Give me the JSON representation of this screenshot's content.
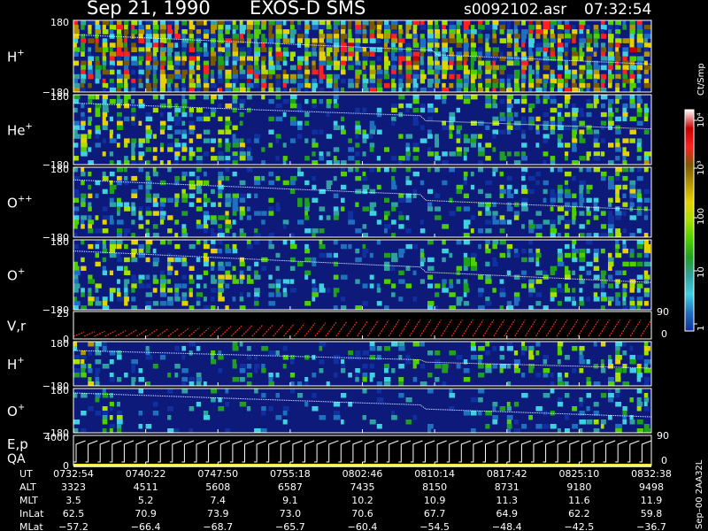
{
  "header": {
    "date": "Sep 21, 1990",
    "instrument": "EXOS-D SMS",
    "file": "s0092102.asr",
    "time": "07:32:54"
  },
  "colors": {
    "background": "#000000",
    "plot_fill": "#0d1a7a",
    "trace": "#ffffff",
    "vr_series": "#e03020",
    "qa_bar": "#f0e020"
  },
  "panels": [
    {
      "id": "hplus-1",
      "label": "H",
      "sup": "+",
      "ymax": "180",
      "ymin": "−180"
    },
    {
      "id": "heplus",
      "label": "He",
      "sup": "+",
      "ymax": "180",
      "ymin": "−180"
    },
    {
      "id": "oplusplus",
      "label": "O",
      "sup": "++",
      "ymax": "180",
      "ymin": "−180"
    },
    {
      "id": "oplus-1",
      "label": "O",
      "sup": "+",
      "ymax": "180",
      "ymin": "−180"
    },
    {
      "id": "vr",
      "label": "V,r",
      "sup": "",
      "ymax": "25",
      "ymin": "0",
      "right_top": "90",
      "right_bottom": "0"
    },
    {
      "id": "hplus-2",
      "label": "H",
      "sup": "+",
      "ymax": "180",
      "ymin": "−180"
    },
    {
      "id": "oplus-2",
      "label": "O",
      "sup": "+",
      "ymax": "180",
      "ymin": "−180"
    },
    {
      "id": "ep",
      "label": "E,p",
      "label2": "QA",
      "ymax": "4000",
      "ymin": "0",
      "right_top": "90",
      "right_bottom": "0"
    }
  ],
  "colorbar": {
    "units": "Ct/Smp",
    "tick_labels": [
      "10⁴",
      "10³",
      "100",
      "10",
      "1"
    ],
    "colors": [
      "#ffffff",
      "#c80000",
      "#ff2020",
      "#7a5a00",
      "#b49600",
      "#e6d200",
      "#a8e000",
      "#50d000",
      "#20a020",
      "#30a0a0",
      "#40d0e0",
      "#2070c0",
      "#1030a0"
    ]
  },
  "chart_data": {
    "type": "heatmap",
    "title": "Sep 21, 1990   EXOS-D SMS",
    "subtitle": "s0092102.asr  07:32:54",
    "x_axis": {
      "rows": [
        {
          "label": "UT",
          "values": [
            "0732:54",
            "0740:22",
            "0747:50",
            "0755:18",
            "0802:46",
            "0810:14",
            "0817:42",
            "0825:10",
            "0832:38"
          ]
        },
        {
          "label": "ALT",
          "values": [
            "3323",
            "4511",
            "5608",
            "6587",
            "7435",
            "8150",
            "8731",
            "9180",
            "9498"
          ]
        },
        {
          "label": "MLT",
          "values": [
            "3.5",
            "5.2",
            "7.4",
            "9.1",
            "10.2",
            "10.9",
            "11.3",
            "11.6",
            "11.9"
          ]
        },
        {
          "label": "InLat",
          "values": [
            "62.5",
            "70.9",
            "73.9",
            "73.0",
            "70.6",
            "67.7",
            "64.9",
            "62.2",
            "59.8"
          ]
        },
        {
          "label": "MLat",
          "values": [
            "−57.2",
            "−66.4",
            "−68.7",
            "−65.7",
            "−60.4",
            "−54.5",
            "−48.4",
            "−42.5",
            "−36.7"
          ]
        }
      ]
    },
    "colorbar_units": "Ct/Smp",
    "colorbar_scale": "log",
    "colorbar_range": [
      1,
      10000
    ],
    "side_note": "Sep–00  2AA32L"
  }
}
